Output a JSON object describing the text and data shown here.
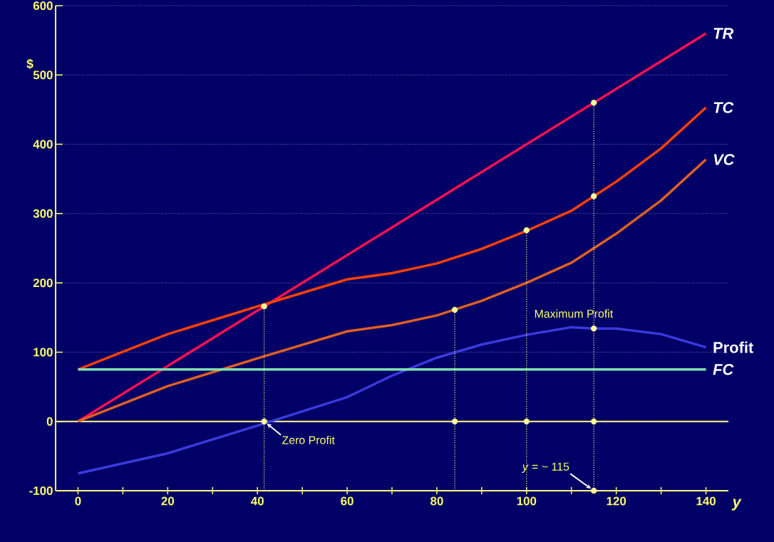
{
  "chart_data": {
    "type": "line",
    "xlabel": "y",
    "ylabel": "$",
    "xlim": [
      -5,
      145
    ],
    "ylim": [
      -100,
      600
    ],
    "xticks": [
      0,
      20,
      40,
      60,
      80,
      100,
      120,
      140
    ],
    "yticks": [
      -100,
      0,
      100,
      200,
      300,
      400,
      500,
      600
    ],
    "grid": "y",
    "series": [
      {
        "name": "TR",
        "color": "#ff1050",
        "x": [
          0,
          20,
          40,
          60,
          80,
          100,
          120,
          140
        ],
        "values": [
          0,
          80,
          160,
          240,
          320,
          400,
          480,
          560
        ]
      },
      {
        "name": "TC",
        "color": "#ff4000",
        "x": [
          0,
          20,
          40,
          60,
          70,
          80,
          90,
          100,
          110,
          120,
          130,
          140
        ],
        "values": [
          75,
          126,
          166,
          205,
          214,
          228,
          249,
          275,
          304,
          346,
          394,
          453
        ]
      },
      {
        "name": "VC",
        "color": "#e06020",
        "x": [
          0,
          20,
          40,
          60,
          70,
          80,
          90,
          100,
          110,
          120,
          130,
          140
        ],
        "values": [
          0,
          51,
          91,
          130,
          139,
          153,
          174,
          200,
          229,
          271,
          319,
          378
        ]
      },
      {
        "name": "Profit",
        "color": "#3a3adf",
        "x": [
          0,
          20,
          40,
          60,
          70,
          80,
          90,
          100,
          110,
          115,
          120,
          130,
          140
        ],
        "values": [
          -75,
          -46,
          -6,
          35,
          66,
          92,
          111,
          125,
          136,
          134,
          134,
          126,
          107
        ]
      },
      {
        "name": "FC",
        "color": "#80e0b0",
        "x": [
          0,
          140
        ],
        "values": [
          75,
          75
        ]
      },
      {
        "type": "line",
        "line_style": "dotted",
        "color": "#ffff99",
        "x": [
          41.5,
          41.5
        ],
        "values": [
          -100,
          166
        ]
      },
      {
        "type": "line",
        "line_style": "dotted",
        "color": "#ffff99",
        "x": [
          84,
          84
        ],
        "values": [
          -100,
          161
        ]
      },
      {
        "type": "line",
        "line_style": "dotted",
        "color": "#ffff99",
        "x": [
          100,
          100
        ],
        "values": [
          -100,
          276
        ]
      },
      {
        "type": "line",
        "line_style": "dotted",
        "color": "#ffff99",
        "x": [
          115,
          115
        ],
        "values": [
          -100,
          460
        ]
      },
      {
        "type": "scatter",
        "color": "#ffff99",
        "x": [
          41.5,
          84,
          100,
          115,
          115,
          115,
          41.5,
          84,
          100,
          115,
          115
        ],
        "values": [
          166,
          161,
          276,
          460,
          325,
          134,
          0,
          0,
          0,
          0,
          -100
        ]
      }
    ],
    "ref_lines": [
      {
        "axis": "y",
        "value": 0,
        "color": "#ffff80"
      }
    ],
    "annotations": [
      "Zero Profit",
      "Maximum Profit",
      "*y* = ~ 115"
    ]
  }
}
